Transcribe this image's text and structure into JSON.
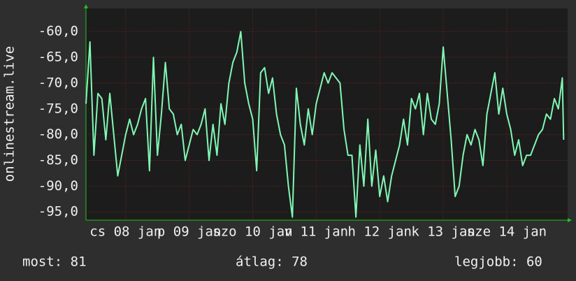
{
  "chart_data": {
    "type": "line",
    "y_label": "onlinestream.live",
    "color": "#80f8b4",
    "grid": true,
    "xlim": [
      0,
      182
    ],
    "ylim": [
      -96.6,
      -55.5
    ],
    "yticks": [
      {
        "value": -60,
        "label": "-60,0"
      },
      {
        "value": -65,
        "label": "-65,0"
      },
      {
        "value": -70,
        "label": "-70,0"
      },
      {
        "value": -75,
        "label": "-75,0"
      },
      {
        "value": -80,
        "label": "-80,0"
      },
      {
        "value": -85,
        "label": "-85,0"
      },
      {
        "value": -90,
        "label": "-90,0"
      },
      {
        "value": -95,
        "label": "-95,0"
      }
    ],
    "xticks": [
      {
        "value": 15,
        "label": "cs 08 jan"
      },
      {
        "value": 39,
        "label": "p 09 jan"
      },
      {
        "value": 63,
        "label": "szo 10 jan"
      },
      {
        "value": 87,
        "label": "v 11 jan"
      },
      {
        "value": 111,
        "label": "h 12 jan"
      },
      {
        "value": 135,
        "label": "k 13 jan"
      },
      {
        "value": 159,
        "label": "sze 14 jan"
      }
    ],
    "x": [
      0,
      1.5,
      3,
      4.5,
      6,
      7.5,
      9,
      10.5,
      12,
      13.5,
      15,
      16.5,
      18,
      19.5,
      21,
      22.5,
      24,
      25.5,
      27,
      28.5,
      30,
      31.5,
      33,
      34.5,
      36,
      37.5,
      39,
      40.5,
      42,
      43.5,
      45,
      46.5,
      48,
      49.5,
      51,
      52.5,
      54,
      55.5,
      57,
      58.5,
      60,
      61.5,
      63,
      64.5,
      66,
      67.5,
      69,
      70.5,
      72,
      73.5,
      75,
      76.5,
      78,
      79.5,
      81,
      82.5,
      84,
      85.5,
      87,
      88.5,
      90,
      91.5,
      93,
      94.5,
      96,
      97.5,
      99,
      100.5,
      102,
      103.5,
      105,
      106.5,
      108,
      109.5,
      111,
      112.5,
      114,
      115.5,
      117,
      118.5,
      120,
      121.5,
      123,
      124.5,
      126,
      127.5,
      129,
      130.5,
      132,
      133.5,
      135,
      136.5,
      138,
      139.5,
      141,
      142.5,
      144,
      145.5,
      147,
      148.5,
      150,
      151.5,
      153,
      154.5,
      156,
      157.5,
      159,
      160.5,
      162,
      163.5,
      165,
      166.5,
      168,
      169.5,
      171,
      172.5,
      174,
      175.5,
      177,
      178.5,
      180,
      180.5
    ],
    "values": [
      -74,
      -62,
      -84,
      -72,
      -73,
      -81,
      -72,
      -80,
      -88,
      -84,
      -80,
      -77,
      -80,
      -78,
      -75,
      -73,
      -87,
      -65,
      -84,
      -76,
      -66,
      -75,
      -76,
      -80,
      -78,
      -85,
      -82,
      -79,
      -80,
      -78,
      -75,
      -85,
      -78,
      -84,
      -74,
      -78,
      -70,
      -66,
      -64,
      -60,
      -70,
      -74,
      -77,
      -87,
      -68,
      -67,
      -72,
      -69,
      -76,
      -80,
      -82,
      -90,
      -96,
      -71,
      -78,
      -82,
      -75,
      -80,
      -74,
      -71,
      -68,
      -70,
      -68,
      -69,
      -70,
      -79,
      -84,
      -84,
      -96,
      -82,
      -90,
      -77,
      -90,
      -83,
      -92,
      -88,
      -93,
      -88,
      -85,
      -82,
      -77,
      -82,
      -73,
      -75,
      -72,
      -80,
      -72,
      -77,
      -78,
      -74,
      -63,
      -72,
      -81,
      -92,
      -90,
      -84,
      -80,
      -82,
      -79,
      -81,
      -86,
      -76,
      -72,
      -68,
      -76,
      -71,
      -76,
      -79,
      -84,
      -81,
      -86,
      -84,
      -84,
      -82,
      -80,
      -79,
      -76,
      -77,
      -73,
      -75,
      -69,
      -81
    ],
    "annotations": [
      "most: 81",
      "átlag: 78",
      "legjobb: 60"
    ]
  }
}
